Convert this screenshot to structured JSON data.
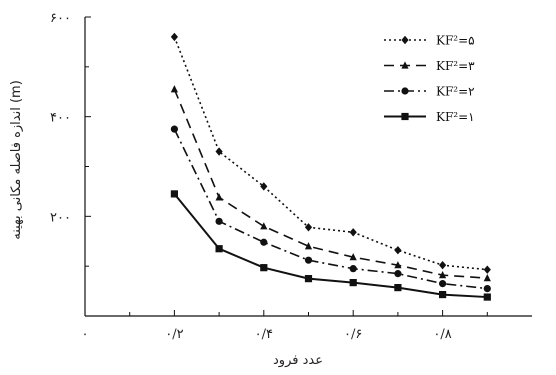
{
  "chart_data": {
    "type": "line",
    "xlabel": "عدد فرود",
    "ylabel": "اندازه فاصله مکانی بهینه (m)",
    "xlim": [
      0,
      1.0
    ],
    "ylim": [
      0,
      600
    ],
    "x_ticks": [
      {
        "value": 0,
        "label": "۰"
      },
      {
        "value": 0.2,
        "label": "۰/۲"
      },
      {
        "value": 0.4,
        "label": "۰/۴"
      },
      {
        "value": 0.6,
        "label": "۰/۶"
      },
      {
        "value": 0.8,
        "label": "۰/۸"
      }
    ],
    "y_ticks": [
      {
        "value": 200,
        "label": "۲۰۰"
      },
      {
        "value": 400,
        "label": "۴۰۰"
      },
      {
        "value": 600,
        "label": "۶۰۰"
      }
    ],
    "grid": false,
    "legend_position": "top-right",
    "x": [
      0.2,
      0.3,
      0.4,
      0.5,
      0.6,
      0.7,
      0.8,
      0.9
    ],
    "series": [
      {
        "name": "KF²=۵",
        "style": "dotted",
        "marker": "diamond",
        "values": [
          560,
          330,
          260,
          178,
          168,
          132,
          102,
          93
        ]
      },
      {
        "name": "KF²=۳",
        "style": "longdash",
        "marker": "triangle",
        "values": [
          455,
          238,
          180,
          140,
          118,
          102,
          82,
          76
        ]
      },
      {
        "name": "KF²=۲",
        "style": "dashdot",
        "marker": "circle",
        "values": [
          375,
          190,
          148,
          112,
          95,
          85,
          65,
          55
        ]
      },
      {
        "name": "KF²=۱",
        "style": "solid",
        "marker": "square",
        "values": [
          245,
          135,
          97,
          75,
          67,
          57,
          43,
          38
        ]
      }
    ]
  }
}
